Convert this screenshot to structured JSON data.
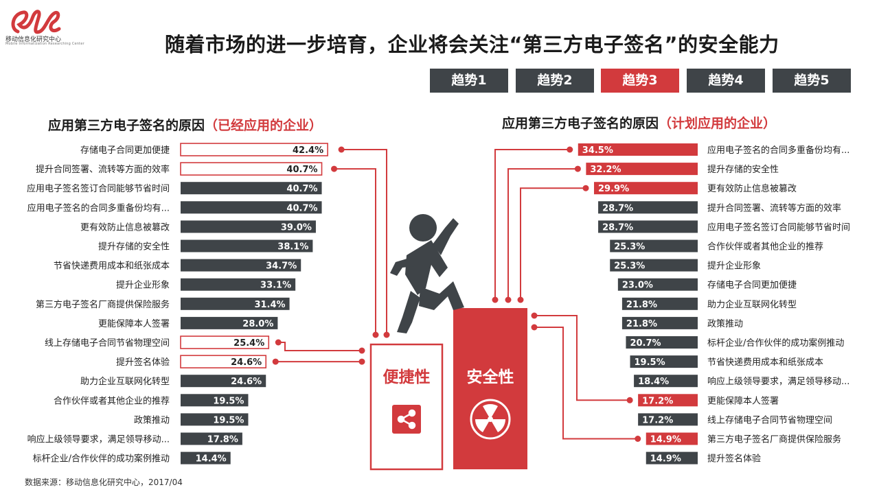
{
  "logo": {
    "name": "移动信息化研究中心",
    "subtitle": "Mobile Informatization Researching Center"
  },
  "title": "随着市场的进一步培育，企业将会关注“第三方电子签名”的安全能力",
  "tabs": [
    {
      "label": "趋势1",
      "active": false
    },
    {
      "label": "趋势2",
      "active": false
    },
    {
      "label": "趋势3",
      "active": true
    },
    {
      "label": "趋势4",
      "active": false
    },
    {
      "label": "趋势5",
      "active": false
    }
  ],
  "left_section": {
    "title": "应用第三方电子签名的原因",
    "highlight": "（已经应用的企业）"
  },
  "right_section": {
    "title": "应用第三方电子签名的原因",
    "highlight": "（计划应用的企业）"
  },
  "center": {
    "convenience_label": "便捷性",
    "security_label": "安全性",
    "icon_left": "share-icon",
    "icon_right": "radiation-icon"
  },
  "source": "数据来源：移动信息化研究中心，2017/04",
  "colors": {
    "accent": "#d23a3d",
    "dark": "#3f4448"
  },
  "chart_data": [
    {
      "type": "bar",
      "orientation": "horizontal",
      "title": "应用第三方电子签名的原因（已经应用的企业）",
      "categories": [
        "存储电子合同更加便捷",
        "提升合同签署、流转等方面的效率",
        "应用电子签名签订合同能够节省时间",
        "应用电子签名的合同多重备份均有...",
        "更有效防止信息被篡改",
        "提升存储的安全性",
        "节省快递费用成本和纸张成本",
        "提升企业形象",
        "第三方电子签名厂商提供保险服务",
        "更能保障本人签署",
        "线上存储电子合同节省物理空间",
        "提升签名体验",
        "助力企业互联网化转型",
        "合作伙伴或者其他企业的推荐",
        "政策推动",
        "响应上级领导要求，满足领导移动...",
        "标杆企业/合作伙伴的成功案例推动"
      ],
      "values": [
        42.4,
        40.7,
        40.7,
        40.7,
        39.0,
        38.1,
        34.7,
        33.1,
        31.4,
        28.0,
        25.4,
        24.6,
        24.6,
        19.5,
        19.5,
        17.8,
        14.4
      ],
      "labels": [
        "42.4%",
        "40.7%",
        "40.7%",
        "40.7%",
        "39.0%",
        "38.1%",
        "34.7%",
        "33.1%",
        "31.4%",
        "28.0%",
        "25.4%",
        "24.6%",
        "24.6%",
        "19.5%",
        "19.5%",
        "17.8%",
        "14.4%"
      ],
      "highlighted": [
        0,
        1,
        10,
        11
      ]
    },
    {
      "type": "bar",
      "orientation": "horizontal",
      "title": "应用第三方电子签名的原因（计划应用的企业）",
      "categories": [
        "应用电子签名的合同多重备份均有...",
        "提升存储的安全性",
        "更有效防止信息被篡改",
        "提升合同签署、流转等方面的效率",
        "应用电子签名签订合同能够节省时间",
        "合作伙伴或者其他企业的推荐",
        "提升企业形象",
        "存储电子合同更加便捷",
        "助力企业互联网化转型",
        "政策推动",
        "标杆企业/合作伙伴的成功案例推动",
        "节省快递费用成本和纸张成本",
        "响应上级领导要求，满足领导移动...",
        "更能保障本人签署",
        "线上存储电子合同节省物理空间",
        "第三方电子签名厂商提供保险服务",
        "提升签名体验"
      ],
      "values": [
        34.5,
        32.2,
        29.9,
        28.7,
        28.7,
        25.3,
        25.3,
        23.0,
        21.8,
        21.8,
        20.7,
        19.5,
        18.4,
        17.2,
        17.2,
        14.9,
        14.9
      ],
      "labels": [
        "34.5%",
        "32.2%",
        "29.9%",
        "28.7%",
        "28.7%",
        "25.3%",
        "25.3%",
        "23.0%",
        "21.8%",
        "21.8%",
        "20.7%",
        "19.5%",
        "18.4%",
        "17.2%",
        "17.2%",
        "14.9%",
        "14.9%"
      ],
      "highlighted": [
        0,
        1,
        2,
        13,
        15
      ]
    }
  ]
}
